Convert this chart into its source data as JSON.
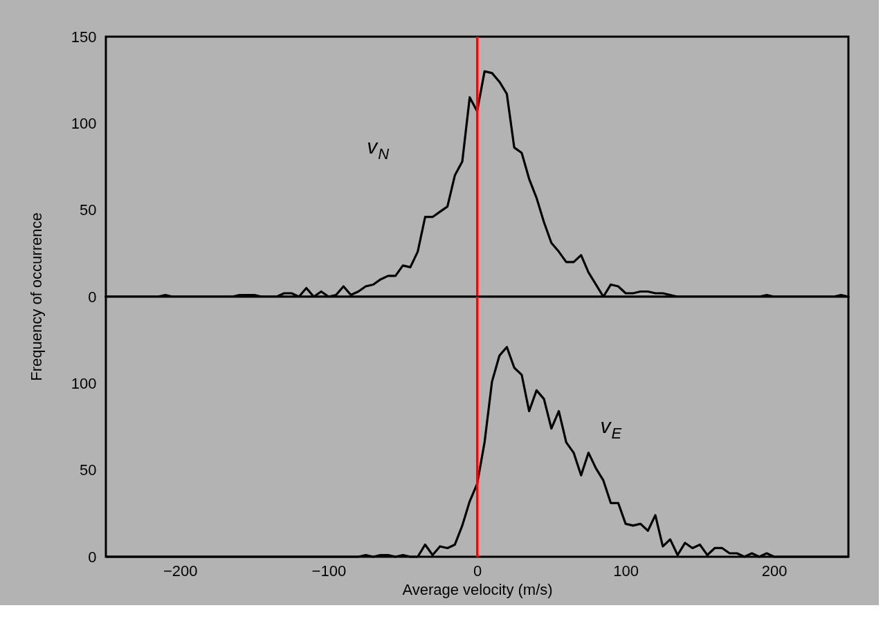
{
  "chart_data": [
    {
      "type": "line",
      "ylabel": "Frequency of occurrence",
      "xlim": [
        -250,
        250
      ],
      "ylim": [
        0,
        150
      ],
      "yticks": [
        0,
        50,
        100,
        150
      ],
      "tick_labels": "y",
      "grid": false,
      "marker": "none",
      "line_style": "solid",
      "ref_lines": [
        {
          "axis": "x",
          "value": 0,
          "color": "#ff0000"
        }
      ],
      "x": [
        -250,
        -215,
        -210,
        -205,
        -165,
        -160,
        -150,
        -145,
        -135,
        -130,
        -125,
        -120,
        -115,
        -110,
        -105,
        -100,
        -95,
        -90,
        -85,
        -80,
        -75,
        -70,
        -65,
        -60,
        -55,
        -50,
        -45,
        -40,
        -35,
        -30,
        -25,
        -20,
        -15,
        -10,
        -5,
        0,
        5,
        10,
        15,
        20,
        25,
        30,
        35,
        40,
        45,
        50,
        55,
        60,
        65,
        70,
        75,
        80,
        85,
        90,
        95,
        100,
        105,
        110,
        115,
        120,
        125,
        130,
        135,
        190,
        195,
        200,
        240,
        245,
        250
      ],
      "series": [
        {
          "name": "v$_{N}$",
          "color": "#000000",
          "values": [
            0,
            0,
            1,
            0,
            0,
            1,
            1,
            0,
            0,
            2,
            2,
            0,
            5,
            0,
            3,
            0,
            1,
            6,
            1,
            3,
            6,
            7,
            10,
            12,
            12,
            18,
            17,
            26,
            46,
            46,
            49,
            52,
            70,
            78,
            115,
            107,
            130,
            129,
            124,
            117,
            86,
            83,
            68,
            57,
            43,
            31,
            26,
            20,
            20,
            24,
            14,
            7,
            0,
            7,
            6,
            2,
            2,
            3,
            3,
            2,
            2,
            1,
            0,
            0,
            1,
            0,
            0,
            1,
            0
          ]
        }
      ]
    },
    {
      "type": "line",
      "xlabel": "Average velocity (m/s)",
      "xlim": [
        -250,
        250
      ],
      "xticks": [
        -200,
        -100,
        0,
        100,
        200
      ],
      "ylim": [
        0,
        150
      ],
      "yticks": [
        0,
        50,
        100
      ],
      "grid": false,
      "marker": "none",
      "line_style": "solid",
      "ref_lines": [
        {
          "axis": "x",
          "value": 0,
          "color": "#ff0000"
        }
      ],
      "x": [
        -250,
        -80,
        -75,
        -70,
        -65,
        -60,
        -55,
        -50,
        -45,
        -40,
        -35,
        -30,
        -25,
        -20,
        -15,
        -10,
        -5,
        0,
        5,
        10,
        15,
        20,
        25,
        30,
        35,
        40,
        45,
        50,
        55,
        60,
        65,
        70,
        75,
        80,
        85,
        90,
        95,
        100,
        105,
        110,
        115,
        120,
        125,
        130,
        135,
        140,
        145,
        150,
        155,
        160,
        165,
        170,
        175,
        180,
        185,
        190,
        195,
        200,
        250
      ],
      "series": [
        {
          "name": "v$_{E}$",
          "color": "#000000",
          "values": [
            0,
            0,
            1,
            0,
            1,
            1,
            0,
            1,
            0,
            0,
            7,
            1,
            6,
            5,
            7,
            18,
            32,
            42,
            66,
            101,
            116,
            121,
            109,
            105,
            84,
            96,
            91,
            74,
            84,
            66,
            60,
            47,
            60,
            51,
            44,
            31,
            31,
            19,
            18,
            19,
            15,
            24,
            6,
            10,
            1,
            8,
            5,
            7,
            1,
            5,
            5,
            2,
            2,
            0,
            2,
            0,
            2,
            0,
            0
          ]
        }
      ]
    }
  ]
}
